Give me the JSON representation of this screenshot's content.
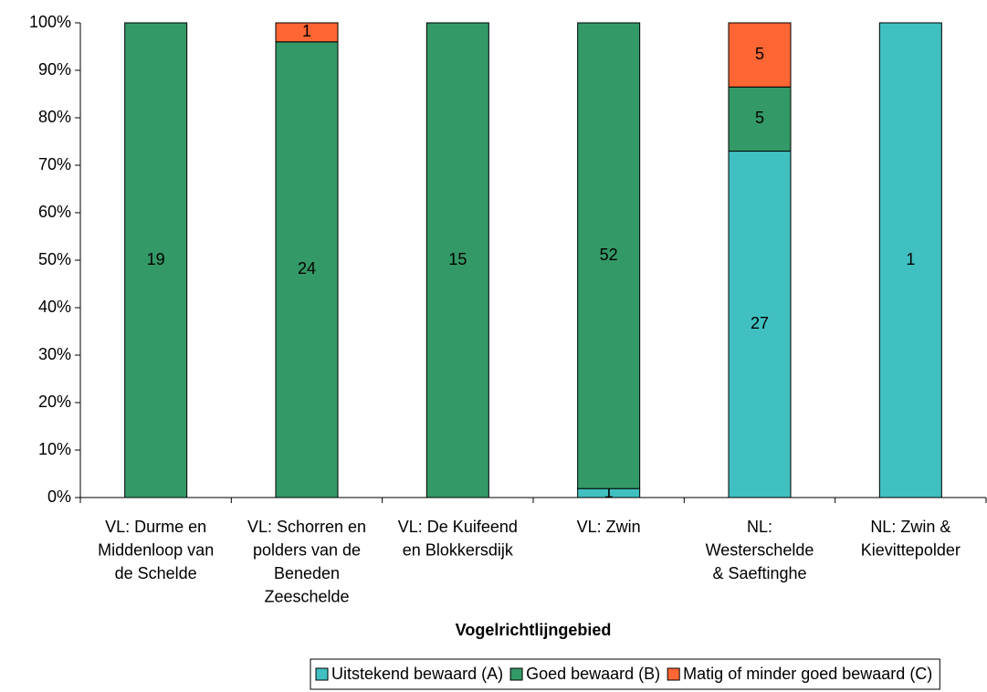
{
  "chart_data": {
    "type": "stacked_percent_bar",
    "categories": [
      [
        "VL: Durme en",
        "Middenloop van",
        "de Schelde"
      ],
      [
        "VL: Schorren en",
        "polders van de",
        "Beneden",
        "Zeeschelde"
      ],
      [
        "VL: De Kuifeend",
        "en Blokkersdijk"
      ],
      [
        "VL: Zwin"
      ],
      [
        "NL:",
        "Westerschelde",
        "& Saeftinghe"
      ],
      [
        "NL: Zwin &",
        "Kievittepolder"
      ]
    ],
    "series": [
      {
        "name": "Uitstekend bewaard (A)",
        "color": "#40c0c0",
        "values": [
          null,
          null,
          null,
          1,
          27,
          1
        ]
      },
      {
        "name": "Goed bewaard (B)",
        "color": "#339966",
        "values": [
          19,
          24,
          15,
          52,
          5,
          null
        ]
      },
      {
        "name": "Matig of minder goed bewaard (C)",
        "color": "#ff6633",
        "values": [
          null,
          1,
          null,
          null,
          5,
          null
        ]
      }
    ],
    "x_label": "Vogelrichtlijngebied",
    "ylim": [
      0,
      100
    ],
    "yticks": [
      {
        "value": 0,
        "label": "0%"
      },
      {
        "value": 10,
        "label": "10%"
      },
      {
        "value": 20,
        "label": "20%"
      },
      {
        "value": 30,
        "label": "30%"
      },
      {
        "value": 40,
        "label": "40%"
      },
      {
        "value": 50,
        "label": "50%"
      },
      {
        "value": 60,
        "label": "60%"
      },
      {
        "value": 70,
        "label": "70%"
      },
      {
        "value": 80,
        "label": "80%"
      },
      {
        "value": 90,
        "label": "90%"
      },
      {
        "value": 100,
        "label": "100%"
      }
    ],
    "legend": "bottom"
  }
}
